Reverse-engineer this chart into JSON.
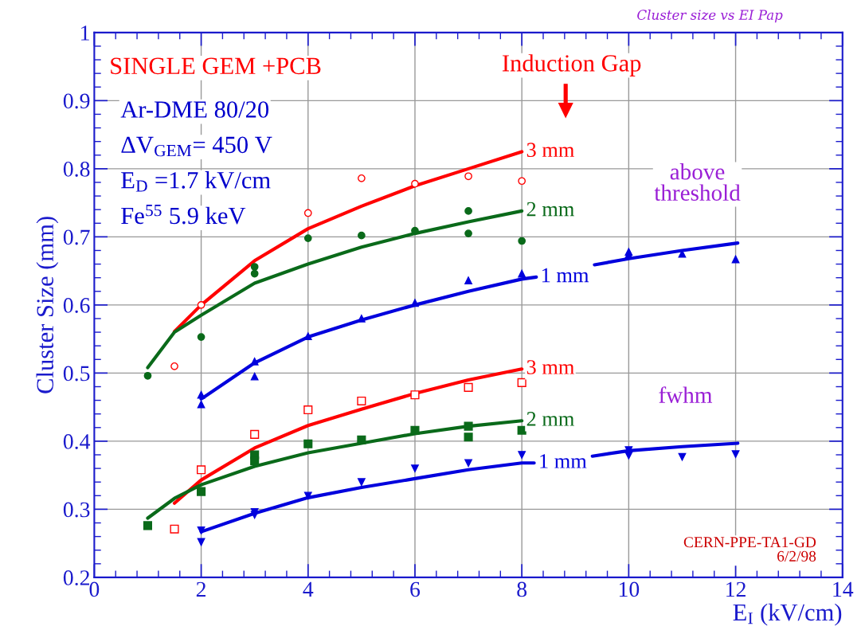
{
  "chart_data": {
    "type": "scatter",
    "title": "Cluster size vs EI Pap",
    "xlabel": "E$_{I}$ (kV/cm)",
    "ylabel": "Cluster Size (mm)",
    "xlim": [
      0,
      14
    ],
    "xticks": [
      0,
      2,
      4,
      6,
      8,
      10,
      12,
      14
    ],
    "ylim": [
      0.2,
      1
    ],
    "yticks": [
      0.2,
      0.3,
      0.4,
      0.5,
      0.6,
      0.7,
      0.8,
      0.9,
      1
    ],
    "grid": true,
    "legend": false,
    "annotations": [
      "SINGLE GEM +PCB",
      "Ar-DME 80/20",
      "ΔV$_{GEM}$= 450 V",
      "E$_{D}$ =1.7 kV/cm",
      "Fe$^{55}$ 5.9 keV",
      "Induction Gap",
      "above\nthreshold",
      "fwhm",
      "CERN-PPE-TA1-GD\n6/2/98"
    ],
    "series": [
      {
        "marker": "circle-open",
        "color": "#ff0000",
        "x": [
          1.5,
          2,
          4,
          5,
          6,
          7,
          8
        ],
        "values": [
          0.51,
          0.6,
          0.735,
          0.786,
          0.778,
          0.789,
          0.782
        ]
      },
      {
        "marker": "circle",
        "color": "#0a6a1a",
        "x": [
          1,
          2,
          3,
          3,
          4,
          5,
          6,
          7,
          7,
          8
        ],
        "values": [
          0.496,
          0.553,
          0.656,
          0.646,
          0.698,
          0.702,
          0.709,
          0.738,
          0.705,
          0.694
        ]
      },
      {
        "marker": "triangle",
        "color": "#0000dd",
        "x": [
          2,
          2,
          3,
          3,
          4,
          5,
          6,
          7,
          8,
          10,
          10,
          11,
          12
        ],
        "values": [
          0.468,
          0.454,
          0.517,
          0.495,
          0.554,
          0.58,
          0.603,
          0.636,
          0.646,
          0.678,
          0.674,
          0.675,
          0.667
        ]
      },
      {
        "marker": "square-open",
        "color": "#ff0000",
        "x": [
          1.5,
          2,
          3,
          4,
          5,
          6,
          7,
          8
        ],
        "values": [
          0.271,
          0.358,
          0.41,
          0.446,
          0.459,
          0.468,
          0.479,
          0.486
        ]
      },
      {
        "marker": "square",
        "color": "#0a6a1a",
        "x": [
          1,
          2,
          3,
          3,
          4,
          5,
          6,
          7,
          7,
          8
        ],
        "values": [
          0.276,
          0.326,
          0.38,
          0.371,
          0.396,
          0.402,
          0.416,
          0.422,
          0.406,
          0.416
        ]
      },
      {
        "marker": "triangle-down",
        "color": "#0000dd",
        "x": [
          2,
          2,
          3,
          3,
          4,
          5,
          6,
          7,
          8,
          10,
          10,
          11,
          12
        ],
        "values": [
          0.269,
          0.252,
          0.296,
          0.292,
          0.32,
          0.34,
          0.36,
          0.368,
          0.38,
          0.387,
          0.379,
          0.377,
          0.381
        ]
      },
      {
        "type": "line",
        "name": "3 mm",
        "color": "#ff0000",
        "x": [
          1.5,
          2,
          3,
          4,
          5,
          6,
          7,
          8
        ],
        "values": [
          0.561,
          0.6,
          0.665,
          0.712,
          0.745,
          0.775,
          0.8,
          0.825
        ]
      },
      {
        "type": "line",
        "name": "2 mm",
        "color": "#0a6a1a",
        "x": [
          1,
          1.5,
          2,
          3,
          4,
          5,
          6,
          7,
          8
        ],
        "values": [
          0.508,
          0.56,
          0.585,
          0.632,
          0.66,
          0.685,
          0.705,
          0.722,
          0.738
        ]
      },
      {
        "type": "line",
        "name": "1 mm",
        "color": "#0000dd",
        "x": [
          2,
          3,
          4,
          5,
          6,
          7,
          8,
          8.27,
          8.8,
          9.36,
          10,
          11,
          12.04
        ],
        "values": [
          0.462,
          0.515,
          0.553,
          0.578,
          0.6,
          0.62,
          0.638,
          0.641,
          null,
          0.659,
          0.668,
          0.68,
          0.691
        ]
      },
      {
        "type": "line",
        "name": "3 mm",
        "color": "#ff0000",
        "x": [
          1.5,
          2,
          3,
          4,
          5,
          6,
          7,
          8
        ],
        "values": [
          0.309,
          0.343,
          0.39,
          0.423,
          0.447,
          0.47,
          0.49,
          0.506
        ]
      },
      {
        "type": "line",
        "name": "2 mm",
        "color": "#0a6a1a",
        "x": [
          1,
          1.5,
          2,
          3,
          4,
          5,
          6,
          7,
          8
        ],
        "values": [
          0.287,
          0.316,
          0.336,
          0.363,
          0.383,
          0.397,
          0.411,
          0.422,
          0.43
        ]
      },
      {
        "type": "line",
        "name": "1 mm",
        "color": "#0000dd",
        "x": [
          2,
          3,
          4,
          5,
          6,
          7,
          8,
          8.23,
          8.8,
          9.32,
          10,
          11,
          12.04
        ],
        "values": [
          0.267,
          0.294,
          0.317,
          0.332,
          0.345,
          0.358,
          0.368,
          0.368,
          null,
          0.378,
          0.386,
          0.392,
          0.397
        ]
      }
    ]
  }
}
